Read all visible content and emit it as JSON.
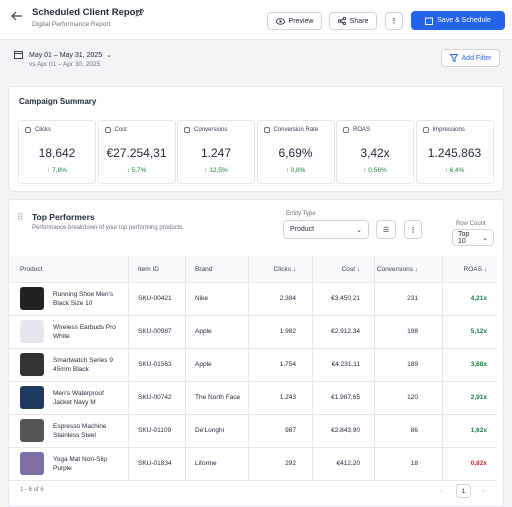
{
  "header": {
    "title": "Scheduled Client Report",
    "subtitle": "Digital Performance Report",
    "preview": "Preview",
    "share": "Share",
    "save": "Save & Schedule"
  },
  "filters": {
    "date_range": "May 01 – May 31, 2025",
    "compare": "vs Apr 01 – Apr 30, 2025",
    "add_filter": "Add Filter"
  },
  "summary": {
    "title": "Campaign Summary",
    "cards": [
      {
        "label": "Clicks",
        "value": "18,642",
        "change": "↑ 7,8%"
      },
      {
        "label": "Cost",
        "value": "€27.254,31",
        "change": "↓ 5,7%"
      },
      {
        "label": "Conversions",
        "value": "1.247",
        "change": "↑ 12,5%"
      },
      {
        "label": "Conversion Rate",
        "value": "6,69%",
        "change": "↑ 0,8%"
      },
      {
        "label": "ROAS",
        "value": "3,42x",
        "change": "↑ 0,56%"
      },
      {
        "label": "Impressions",
        "value": "1.245.863",
        "change": "↑ 6,4%"
      }
    ]
  },
  "top": {
    "title": "Top Performers",
    "subtitle": "Performance breakdown of your top performing products.",
    "entity_label": "Entity Type",
    "entity": "Product",
    "row_count_label": "Row Count",
    "row_count": "Top 10",
    "columns": [
      "Product",
      "Item ID",
      "Brand",
      "Clicks",
      "Cost",
      "Conversions",
      "ROAS"
    ],
    "rows": [
      [
        "Running Shoe Men's Black Size 10",
        "SKU-00421",
        "Nike",
        "2.384",
        "€3.450,21",
        "231",
        "4,21x"
      ],
      [
        "Wireless Earbuds Pro White",
        "SKU-00987",
        "Apple",
        "1.982",
        "€2.912,34",
        "198",
        "5,12x"
      ],
      [
        "Smartwatch Series 9 45mm Black",
        "SKU-01563",
        "Apple",
        "1.754",
        "€4.231,11",
        "189",
        "3,68x"
      ],
      [
        "Men's Waterproof Jacket Navy M",
        "SKU-00742",
        "The North Face",
        "1.243",
        "€1.987,65",
        "120",
        "2,91x"
      ],
      [
        "Espresso Machine Stainless Steel",
        "SKU-01109",
        "De'Longhi",
        "987",
        "€2.843,90",
        "86",
        "1,62x"
      ],
      [
        "Yoga Mat Non-Slip Purple",
        "SKU-01834",
        "Liforme",
        "292",
        "€412,20",
        "18",
        "0,82x"
      ]
    ],
    "footer": "1 - 6 of 6",
    "page": "1"
  }
}
